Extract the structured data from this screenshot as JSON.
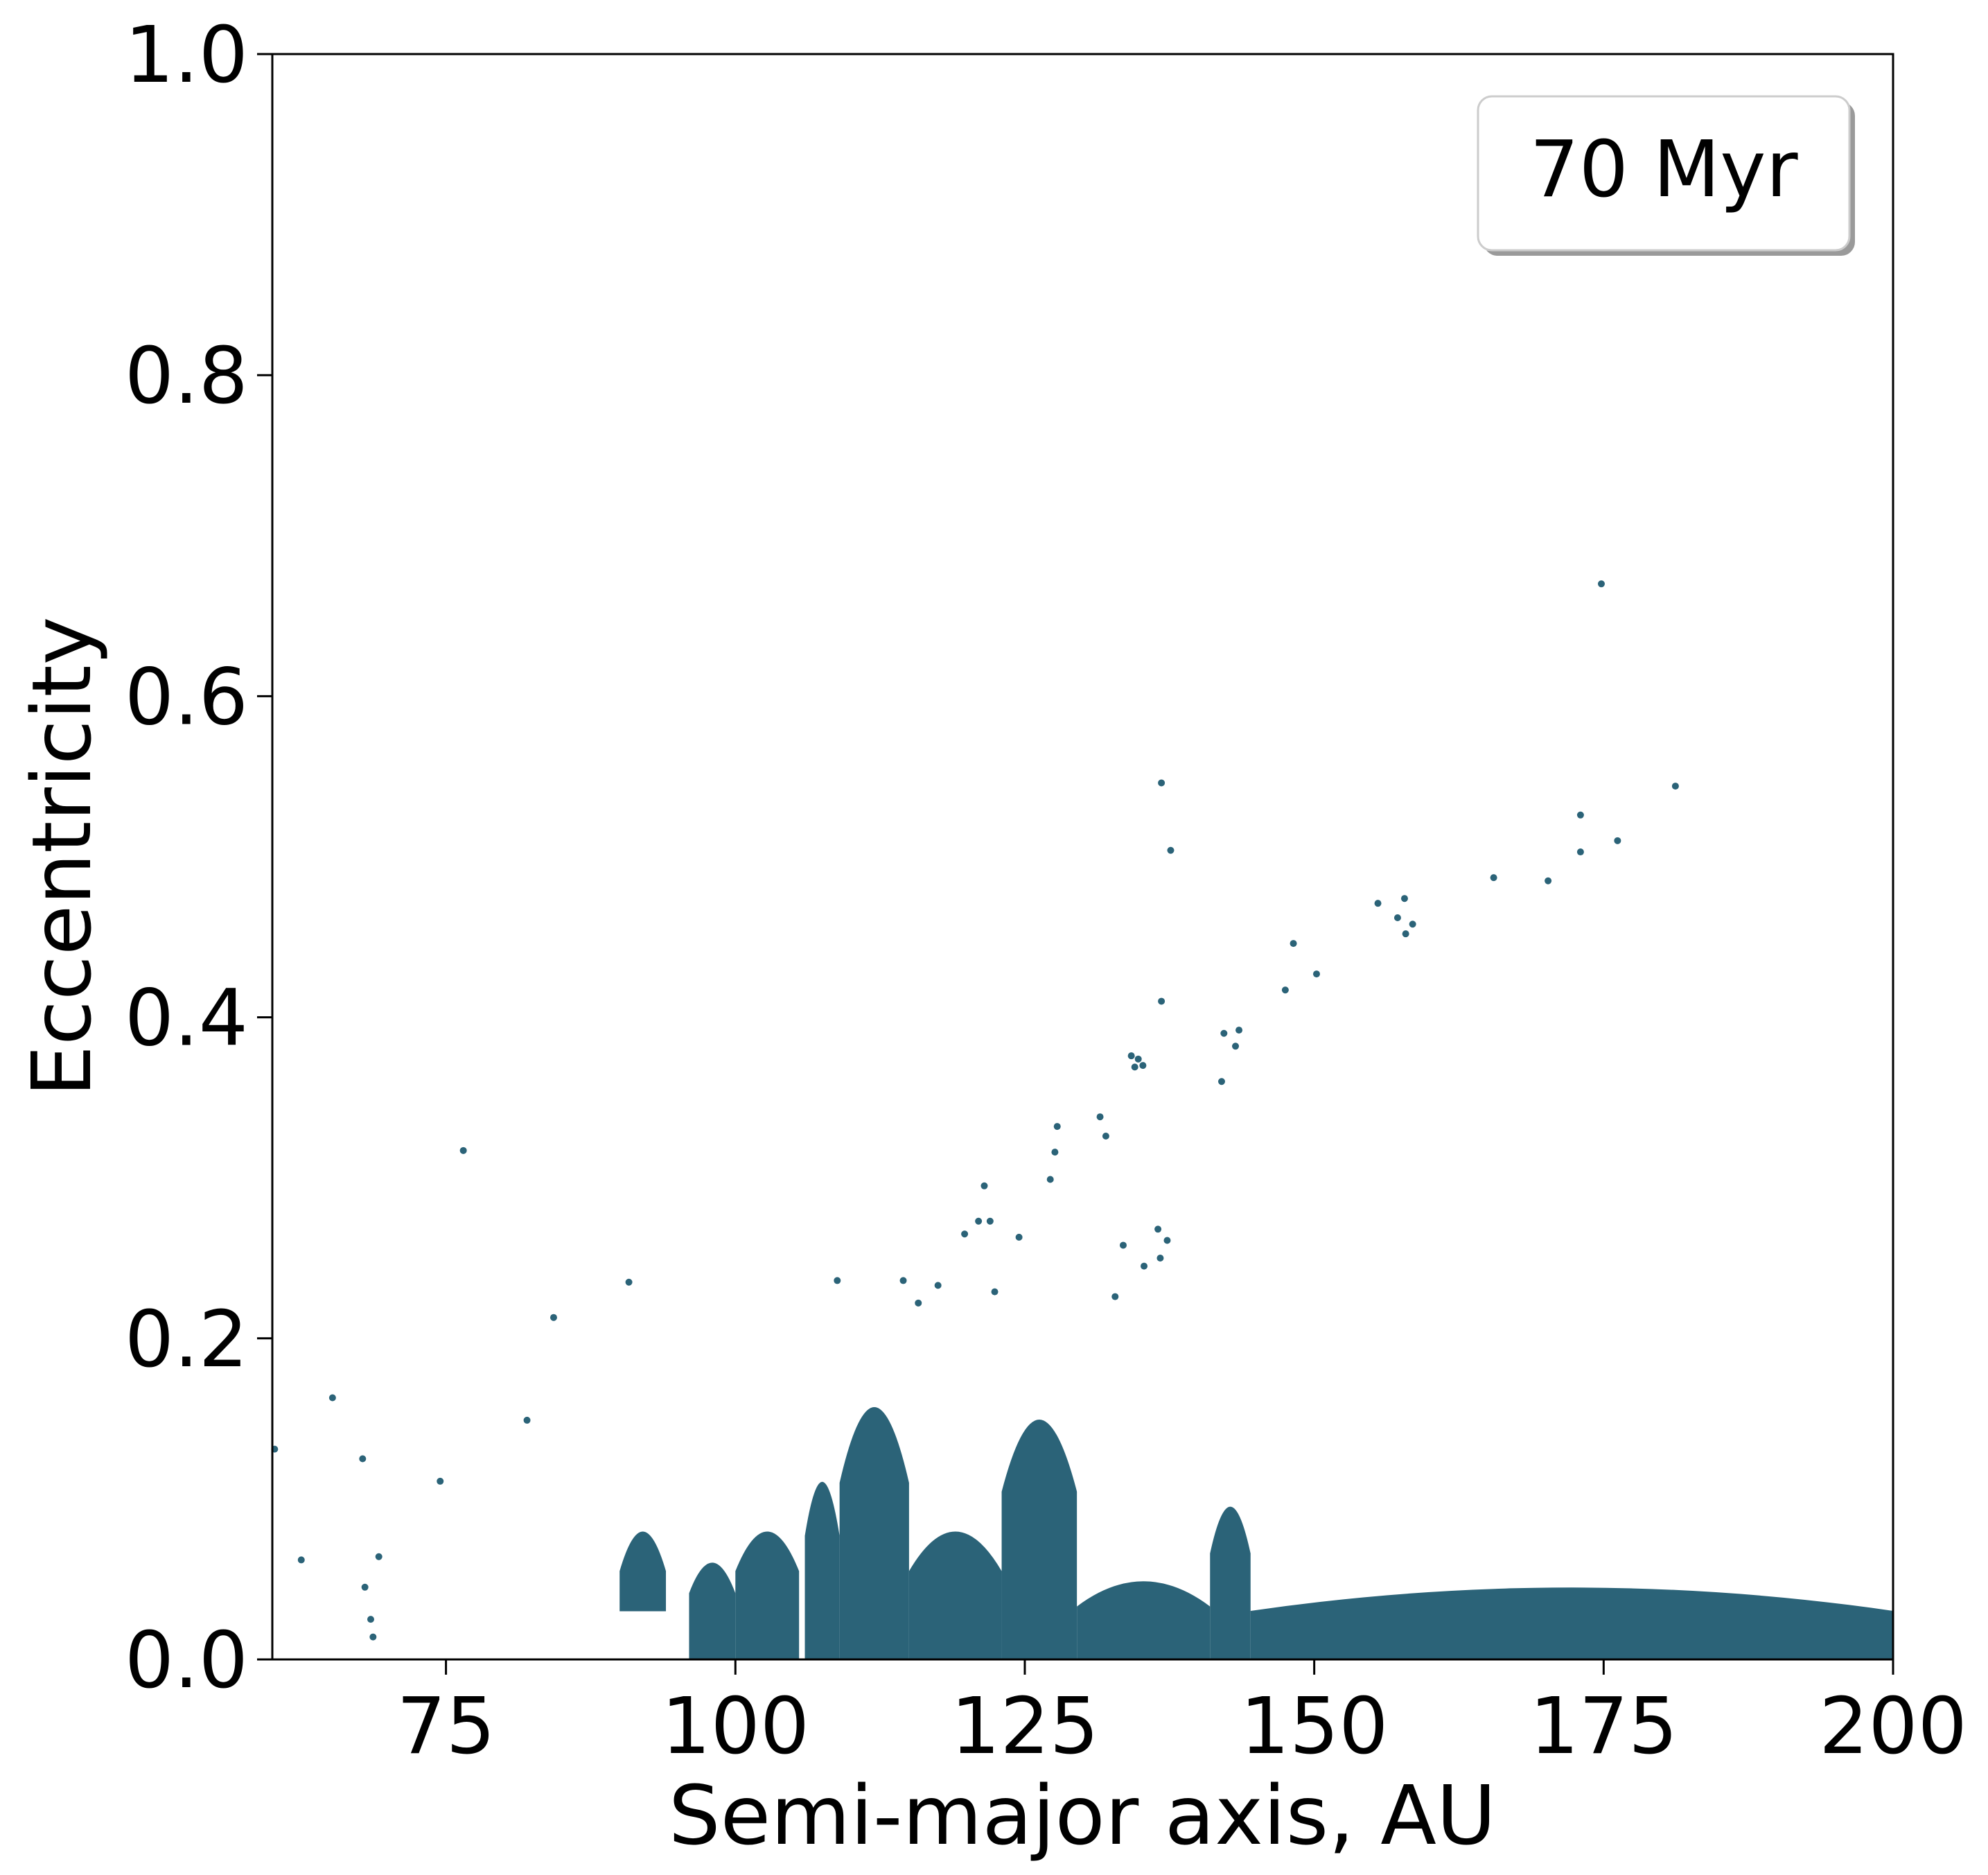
{
  "chart_data": {
    "type": "scatter",
    "title": "",
    "xlabel": "Semi-major axis, AU",
    "ylabel": "Eccentricity",
    "xlim": [
      60,
      200
    ],
    "ylim": [
      0.0,
      1.0
    ],
    "xticks": [
      75,
      100,
      125,
      150,
      175,
      200
    ],
    "xtick_labels": [
      "75",
      "100",
      "125",
      "150",
      "175",
      "200"
    ],
    "yticks": [
      0.0,
      0.2,
      0.4,
      0.6,
      0.8,
      1.0
    ],
    "ytick_labels": [
      "0.0",
      "0.2",
      "0.4",
      "0.6",
      "0.8",
      "1.0"
    ],
    "grid": false,
    "legend": {
      "label": "70 Myr",
      "placement": "top-right"
    },
    "marker_color": "#2b6378",
    "series": [
      {
        "points": [
          [
            60.2,
            0.131
          ],
          [
            62.5,
            0.062
          ],
          [
            65.2,
            0.163
          ],
          [
            67.8,
            0.125
          ],
          [
            68.0,
            0.045
          ],
          [
            68.5,
            0.025
          ],
          [
            68.7,
            0.014
          ],
          [
            69.2,
            0.064
          ],
          [
            74.5,
            0.111
          ],
          [
            76.5,
            0.317
          ],
          [
            82.0,
            0.149
          ],
          [
            84.3,
            0.213
          ],
          [
            90.8,
            0.235
          ],
          [
            108.8,
            0.236
          ],
          [
            114.5,
            0.236
          ],
          [
            115.8,
            0.222
          ],
          [
            117.5,
            0.233
          ],
          [
            119.8,
            0.265
          ],
          [
            121.0,
            0.273
          ],
          [
            121.5,
            0.295
          ],
          [
            122.0,
            0.273
          ],
          [
            122.4,
            0.229
          ],
          [
            124.5,
            0.263
          ],
          [
            127.2,
            0.299
          ],
          [
            127.6,
            0.316
          ],
          [
            127.8,
            0.332
          ],
          [
            131.5,
            0.338
          ],
          [
            132.0,
            0.326
          ],
          [
            132.8,
            0.226
          ],
          [
            133.5,
            0.258
          ],
          [
            134.2,
            0.376
          ],
          [
            134.5,
            0.369
          ],
          [
            134.8,
            0.374
          ],
          [
            135.2,
            0.37
          ],
          [
            135.3,
            0.245
          ],
          [
            136.5,
            0.268
          ],
          [
            136.7,
            0.25
          ],
          [
            136.8,
            0.41
          ],
          [
            136.8,
            0.546
          ],
          [
            137.3,
            0.261
          ],
          [
            137.6,
            0.504
          ],
          [
            142.2,
            0.39
          ],
          [
            142.0,
            0.36
          ],
          [
            143.2,
            0.382
          ],
          [
            143.5,
            0.392
          ],
          [
            147.5,
            0.417
          ],
          [
            148.2,
            0.446
          ],
          [
            150.2,
            0.427
          ],
          [
            155.5,
            0.471
          ],
          [
            157.2,
            0.462
          ],
          [
            157.8,
            0.474
          ],
          [
            157.9,
            0.452
          ],
          [
            158.5,
            0.458
          ],
          [
            165.5,
            0.487
          ],
          [
            170.2,
            0.485
          ],
          [
            173.0,
            0.526
          ],
          [
            173.0,
            0.503
          ],
          [
            174.8,
            0.67
          ],
          [
            176.2,
            0.51
          ],
          [
            181.2,
            0.544
          ]
        ],
        "regions": [
          {
            "x": [
              90.0,
              94.0
            ],
            "ymax": 0.1,
            "ymin": 0.03
          },
          {
            "x": [
              96.0,
              100.0
            ],
            "ymax": 0.075,
            "ymin": 0.0
          },
          {
            "x": [
              100.0,
              105.5
            ],
            "ymax": 0.1,
            "ymin": 0.0
          },
          {
            "x": [
              106.0,
              109.0
            ],
            "ymax": 0.14,
            "ymin": 0.0
          },
          {
            "x": [
              109.0,
              115.0
            ],
            "ymax": 0.2,
            "ymin": 0.0
          },
          {
            "x": [
              115.0,
              123.0
            ],
            "ymax": 0.1,
            "ymin": 0.0
          },
          {
            "x": [
              123.0,
              129.5
            ],
            "ymax": 0.19,
            "ymin": 0.0
          },
          {
            "x": [
              129.5,
              141.0
            ],
            "ymax": 0.06,
            "ymin": 0.0
          },
          {
            "x": [
              141.0,
              144.5
            ],
            "ymax": 0.12,
            "ymin": 0.0
          },
          {
            "x": [
              144.5,
              200.0
            ],
            "ymax": 0.055,
            "ymin": 0.0
          }
        ]
      }
    ]
  }
}
